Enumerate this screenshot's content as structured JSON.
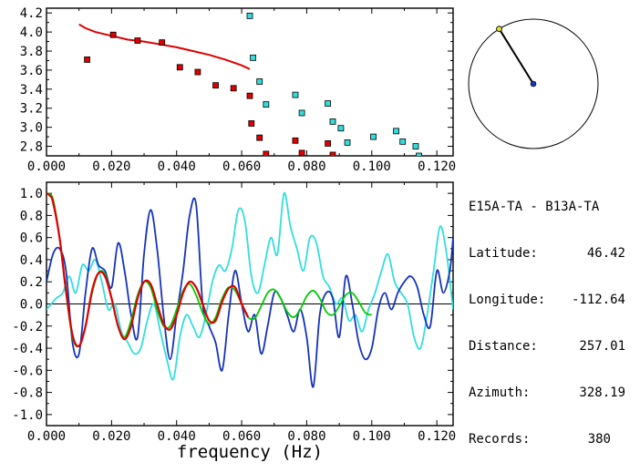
{
  "station": {
    "pair": "E15A-TA - B13A-TA",
    "latitude_label": "Latitude:",
    "latitude": "46.42",
    "longitude_label": "Longitude:",
    "longitude": "-112.64",
    "distance_label": "Distance:",
    "distance": "257.01",
    "azimuth_label": "Azimuth:",
    "azimuth": "328.19",
    "records_label": "Records:",
    "records": "380"
  },
  "chart_data": [
    {
      "type": "scatter",
      "xlim": [
        0,
        0.125
      ],
      "ylim": [
        2.7,
        4.25
      ],
      "xticks": [
        0.0,
        0.02,
        0.04,
        0.06,
        0.08,
        0.1,
        0.12
      ],
      "xtick_labels": [
        "0.000",
        "0.020",
        "0.040",
        "0.060",
        "0.080",
        "0.100",
        "0.120"
      ],
      "yticks": [
        2.8,
        3.0,
        3.2,
        3.4,
        3.6,
        3.8,
        4.0,
        4.2
      ],
      "ytick_labels": [
        "2.8",
        "3.0",
        "3.2",
        "3.4",
        "3.6",
        "3.8",
        "4.0",
        "4.2"
      ],
      "colors": {
        "red": "#e00000",
        "cyan": "#33dddd",
        "curve": "#dd0000"
      },
      "curve": {
        "x": [
          0.01,
          0.012,
          0.015,
          0.02,
          0.025,
          0.03,
          0.035,
          0.04,
          0.045,
          0.05,
          0.055,
          0.06,
          0.0625
        ],
        "y": [
          4.08,
          4.04,
          4.0,
          3.96,
          3.92,
          3.9,
          3.87,
          3.84,
          3.8,
          3.76,
          3.71,
          3.65,
          3.61
        ]
      },
      "series": [
        {
          "x": [
            0.0125,
            0.0205,
            0.028,
            0.0355,
            0.041,
            0.0465,
            0.052,
            0.0575,
            0.0625,
            0.063,
            0.0655,
            0.0675,
            0.0765,
            0.0785,
            0.0865,
            0.088
          ],
          "y": [
            3.71,
            3.97,
            3.91,
            3.89,
            3.63,
            3.58,
            3.44,
            3.41,
            3.33,
            3.04,
            2.89,
            2.72,
            2.86,
            2.73,
            2.83,
            2.71
          ]
        },
        {
          "x": [
            0.0625,
            0.0635,
            0.0655,
            0.0675,
            0.0765,
            0.0785,
            0.0865,
            0.088,
            0.0905,
            0.0925,
            0.1005,
            0.1075,
            0.1095,
            0.1135,
            0.1145
          ],
          "y": [
            4.17,
            3.73,
            3.48,
            3.24,
            3.34,
            3.15,
            3.25,
            3.06,
            2.99,
            2.84,
            2.9,
            2.96,
            2.85,
            2.8,
            2.7
          ]
        }
      ]
    },
    {
      "type": "line",
      "xlim": [
        0,
        0.125
      ],
      "ylim": [
        -1.1,
        1.1
      ],
      "xlabel": "frequency (Hz)",
      "xticks": [
        0.0,
        0.02,
        0.04,
        0.06,
        0.08,
        0.1,
        0.12
      ],
      "xtick_labels": [
        "0.000",
        "0.020",
        "0.040",
        "0.060",
        "0.080",
        "0.100",
        "0.120"
      ],
      "yticks": [
        -1.0,
        -0.8,
        -0.6,
        -0.4,
        -0.2,
        0.0,
        0.2,
        0.4,
        0.6,
        0.8,
        1.0
      ],
      "ytick_labels": [
        "-1.0",
        "-0.8",
        "-0.6",
        "-0.4",
        "-0.2",
        "0.0",
        "0.2",
        "0.4",
        "0.6",
        "0.8",
        "1.0"
      ],
      "series": [
        {
          "color": "#33dddd",
          "x": [
            0.0,
            0.003,
            0.005,
            0.007,
            0.009,
            0.011,
            0.013,
            0.015,
            0.017,
            0.019,
            0.021,
            0.023,
            0.025,
            0.027,
            0.029,
            0.031,
            0.033,
            0.035,
            0.037,
            0.039,
            0.041,
            0.043,
            0.045,
            0.047,
            0.049,
            0.051,
            0.053,
            0.055,
            0.057,
            0.059,
            0.061,
            0.063,
            0.065,
            0.067,
            0.069,
            0.071,
            0.073,
            0.075,
            0.077,
            0.079,
            0.081,
            0.083,
            0.085,
            0.087,
            0.089,
            0.091,
            0.093,
            0.095,
            0.097,
            0.099,
            0.101,
            0.103,
            0.105,
            0.107,
            0.109,
            0.111,
            0.113,
            0.115,
            0.117,
            0.119,
            0.121,
            0.123,
            0.125
          ],
          "y": [
            -0.05,
            0.05,
            0.1,
            0.25,
            0.1,
            0.35,
            0.3,
            0.4,
            0.2,
            -0.05,
            0.0,
            -0.25,
            -0.35,
            -0.45,
            -0.4,
            -0.15,
            0.0,
            -0.25,
            -0.5,
            -0.68,
            -0.3,
            -0.1,
            -0.2,
            -0.3,
            -0.1,
            0.2,
            0.35,
            0.3,
            0.5,
            0.85,
            0.75,
            0.25,
            0.1,
            0.35,
            0.6,
            0.45,
            1.0,
            0.7,
            0.5,
            0.3,
            0.6,
            0.55,
            0.25,
            0.15,
            0.0,
            0.05,
            -0.15,
            -0.1,
            -0.25,
            -0.05,
            0.1,
            0.3,
            0.45,
            0.2,
            0.1,
            0.0,
            -0.3,
            -0.4,
            -0.1,
            0.3,
            0.7,
            0.45,
            -0.05
          ]
        },
        {
          "color": "#1533bb",
          "x": [
            0.0,
            0.002,
            0.004,
            0.006,
            0.008,
            0.01,
            0.012,
            0.014,
            0.016,
            0.018,
            0.02,
            0.022,
            0.024,
            0.026,
            0.028,
            0.03,
            0.032,
            0.034,
            0.036,
            0.038,
            0.04,
            0.042,
            0.044,
            0.046,
            0.048,
            0.05,
            0.052,
            0.054,
            0.056,
            0.058,
            0.06,
            0.062,
            0.064,
            0.066,
            0.068,
            0.07,
            0.072,
            0.074,
            0.076,
            0.078,
            0.08,
            0.082,
            0.084,
            0.086,
            0.088,
            0.09,
            0.092,
            0.094,
            0.096,
            0.098,
            0.1,
            0.102,
            0.104,
            0.106,
            0.108,
            0.11,
            0.112,
            0.114,
            0.116,
            0.118,
            0.12,
            0.122,
            0.124,
            0.125
          ],
          "y": [
            0.2,
            0.45,
            0.5,
            0.3,
            -0.35,
            -0.45,
            0.1,
            0.5,
            0.35,
            0.3,
            0.15,
            0.55,
            0.3,
            -0.1,
            -0.3,
            0.45,
            0.85,
            0.5,
            -0.1,
            -0.5,
            -0.1,
            0.3,
            0.8,
            0.9,
            0.0,
            -0.2,
            -0.35,
            -0.6,
            -0.1,
            0.3,
            0.0,
            -0.25,
            -0.1,
            -0.45,
            -0.2,
            0.1,
            0.05,
            -0.1,
            -0.25,
            -0.05,
            -0.3,
            -0.75,
            -0.1,
            0.1,
            0.05,
            -0.3,
            0.25,
            0.0,
            -0.35,
            -0.5,
            -0.4,
            -0.05,
            0.1,
            -0.05,
            0.1,
            0.2,
            0.25,
            0.15,
            -0.1,
            -0.2,
            0.3,
            0.1,
            0.3,
            0.6
          ]
        },
        {
          "color": "#00cc00",
          "x": [
            0.0,
            0.002,
            0.004,
            0.006,
            0.008,
            0.01,
            0.012,
            0.014,
            0.016,
            0.018,
            0.02,
            0.022,
            0.024,
            0.026,
            0.028,
            0.03,
            0.032,
            0.034,
            0.036,
            0.038,
            0.04,
            0.042,
            0.044,
            0.046,
            0.048,
            0.05,
            0.052,
            0.054,
            0.056,
            0.058,
            0.06,
            0.062,
            0.064,
            0.066,
            0.068,
            0.07,
            0.072,
            0.074,
            0.076,
            0.078,
            0.08,
            0.082,
            0.084,
            0.086,
            0.088,
            0.09,
            0.092,
            0.094,
            0.096,
            0.098,
            0.1
          ],
          "y": [
            1.0,
            0.95,
            0.6,
            0.1,
            -0.3,
            -0.38,
            -0.2,
            0.1,
            0.28,
            0.27,
            0.05,
            -0.2,
            -0.3,
            -0.15,
            0.08,
            0.2,
            0.15,
            -0.05,
            -0.2,
            -0.2,
            -0.05,
            0.12,
            0.18,
            0.08,
            -0.08,
            -0.18,
            -0.12,
            0.05,
            0.15,
            0.12,
            0.0,
            -0.12,
            -0.13,
            -0.02,
            0.1,
            0.13,
            0.05,
            -0.07,
            -0.12,
            -0.05,
            0.07,
            0.12,
            0.05,
            -0.07,
            -0.1,
            -0.02,
            0.08,
            0.1,
            0.02,
            -0.08,
            -0.1
          ]
        },
        {
          "color": "#dd0000",
          "x": [
            0.0,
            0.001,
            0.002,
            0.004,
            0.006,
            0.008,
            0.01,
            0.012,
            0.014,
            0.016,
            0.018,
            0.02,
            0.022,
            0.024,
            0.026,
            0.028,
            0.03,
            0.032,
            0.034,
            0.036,
            0.038,
            0.04,
            0.042,
            0.044,
            0.046,
            0.048,
            0.05,
            0.052,
            0.054,
            0.056,
            0.058,
            0.06,
            0.062
          ],
          "y": [
            1.0,
            0.98,
            0.92,
            0.6,
            0.12,
            -0.28,
            -0.38,
            -0.2,
            0.12,
            0.28,
            0.25,
            0.05,
            -0.2,
            -0.32,
            -0.2,
            0.05,
            0.2,
            0.18,
            0.0,
            -0.18,
            -0.23,
            -0.1,
            0.1,
            0.2,
            0.15,
            0.0,
            -0.15,
            -0.15,
            0.02,
            0.14,
            0.15,
            0.0,
            -0.12
          ]
        }
      ]
    }
  ],
  "azimuth_compass": {
    "azimuth_deg": 328.19,
    "line_color": "#000000",
    "center_color": "#1a33bb",
    "tip_color": "#dddd33"
  }
}
